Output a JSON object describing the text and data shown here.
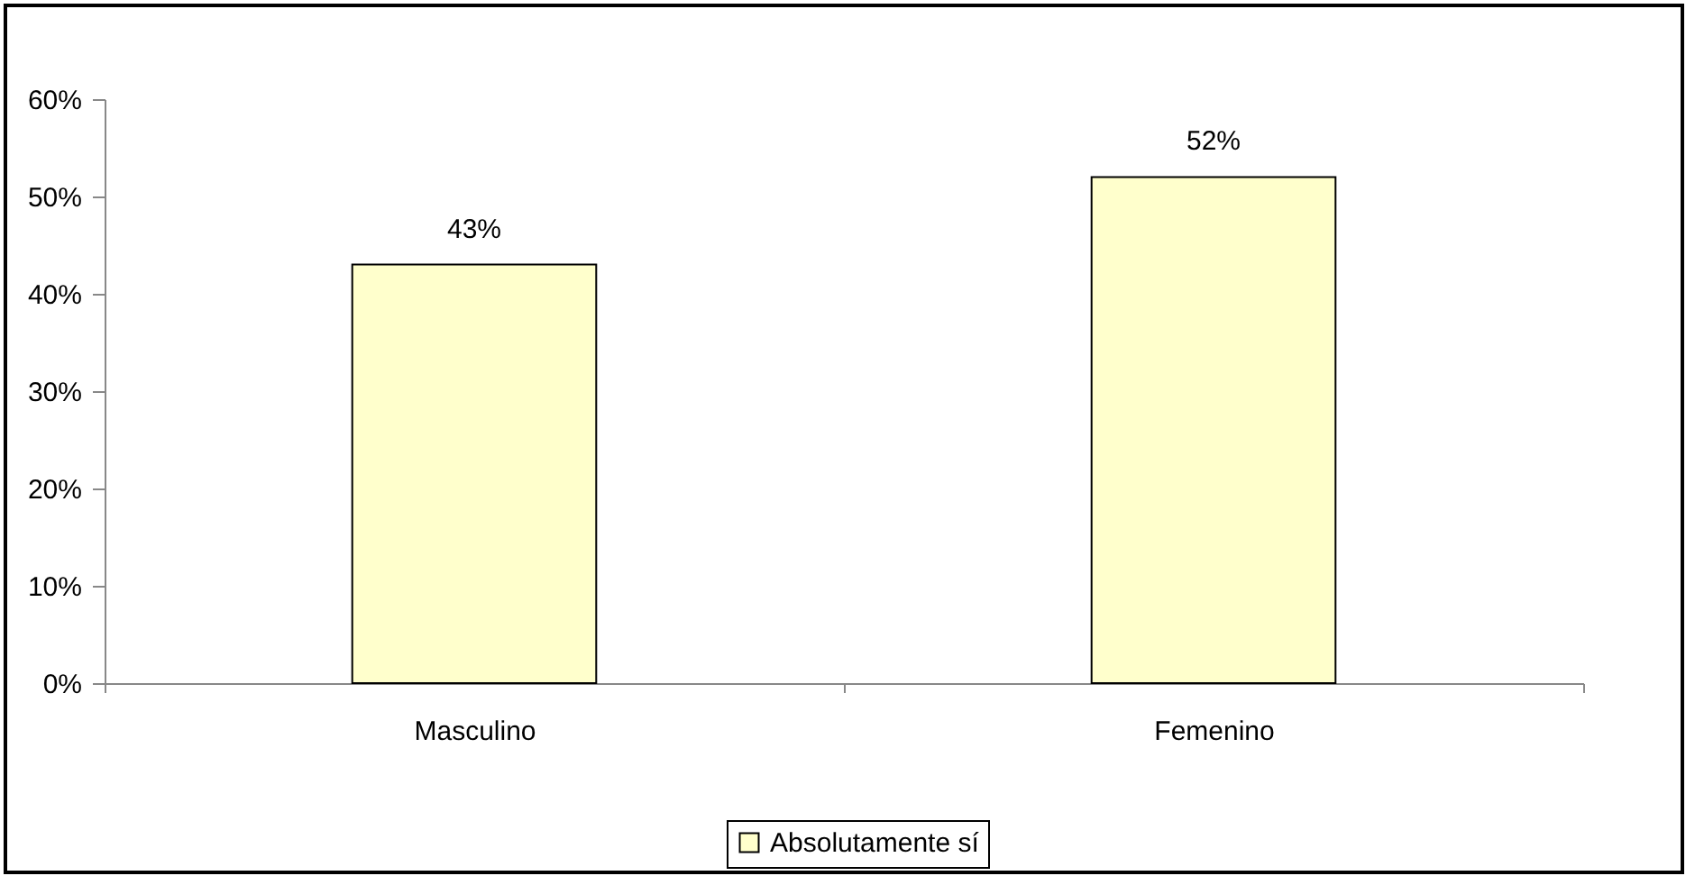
{
  "chart_data": {
    "type": "bar",
    "categories": [
      "Masculino",
      "Femenino"
    ],
    "series": [
      {
        "name": "Absolutamente sí",
        "color": "#ffffcc",
        "values": [
          43,
          52
        ],
        "value_labels": [
          "43%",
          "52%"
        ]
      }
    ],
    "ylim": [
      0,
      60
    ],
    "yticks": [
      {
        "value": 0,
        "label": "0%"
      },
      {
        "value": 10,
        "label": "10%"
      },
      {
        "value": 20,
        "label": "20%"
      },
      {
        "value": 30,
        "label": "30%"
      },
      {
        "value": 40,
        "label": "40%"
      },
      {
        "value": 50,
        "label": "50%"
      },
      {
        "value": 60,
        "label": "60%"
      }
    ],
    "grid": false,
    "legend": "bottom"
  }
}
